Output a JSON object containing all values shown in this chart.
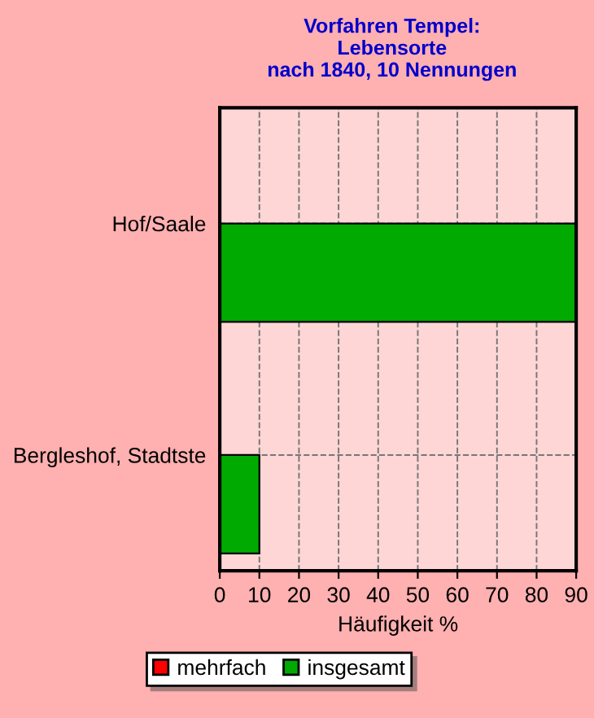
{
  "chart_data": {
    "type": "bar",
    "orientation": "horizontal",
    "title": "Vorfahren Tempel:\nLebensorte\nnach 1840, 10 Nennungen",
    "xlabel": "Häufigkeit %",
    "categories": [
      "Hof/Saale",
      "Bergleshof, Stadtste"
    ],
    "series": [
      {
        "name": "mehrfach",
        "color": "#ff0000",
        "values": [
          null,
          null
        ]
      },
      {
        "name": "insgesamt",
        "color": "#00aa00",
        "values": [
          90,
          10
        ]
      }
    ],
    "xlim": [
      0,
      90
    ],
    "xticks": [
      0,
      10,
      20,
      30,
      40,
      50,
      60,
      70,
      80,
      90
    ],
    "grid": true,
    "legend": "bottom",
    "line_style": "dashed"
  }
}
